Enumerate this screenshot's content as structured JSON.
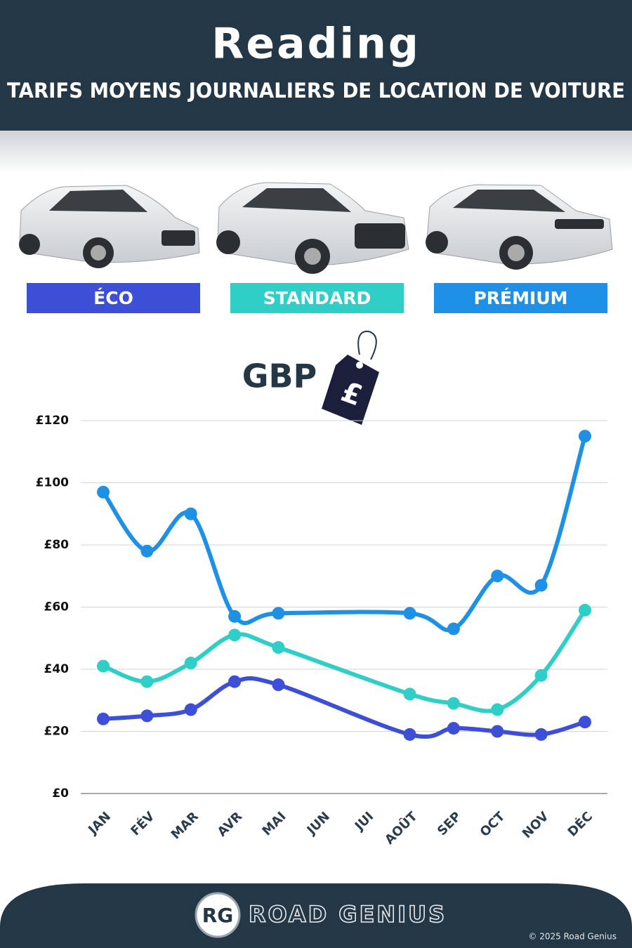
{
  "chart_data": {
    "type": "line",
    "title": "Reading",
    "subtitle": "TARIFS MOYENS JOURNALIERS DE LOCATION DE VOITURE",
    "currency_label": "GBP",
    "currency_symbol": "£",
    "categories": [
      "JAN",
      "FÉV",
      "MAR",
      "AVR",
      "MAI",
      "JUN",
      "JUI",
      "AOÛT",
      "SEP",
      "OCT",
      "NOV",
      "DÉC"
    ],
    "series": [
      {
        "name": "ÉCO",
        "color": "#3d4fd6",
        "values": [
          24,
          25,
          27,
          36,
          35,
          null,
          null,
          19,
          21,
          20,
          19,
          23
        ]
      },
      {
        "name": "STANDARD",
        "color": "#2fcfc7",
        "values": [
          41,
          36,
          42,
          51,
          47,
          null,
          null,
          32,
          29,
          27,
          38,
          59
        ]
      },
      {
        "name": "PRÉMIUM",
        "color": "#1e90e6",
        "values": [
          97,
          78,
          90,
          57,
          58,
          null,
          null,
          58,
          53,
          70,
          67,
          115
        ]
      }
    ],
    "connect_nulls": true,
    "smooth": true,
    "ylim": [
      0,
      120
    ],
    "yticks": [
      {
        "value": 0,
        "label": "£0"
      },
      {
        "value": 20,
        "label": "£20"
      },
      {
        "value": 40,
        "label": "£40"
      },
      {
        "value": 60,
        "label": "£60"
      },
      {
        "value": 80,
        "label": "£80"
      },
      {
        "value": 100,
        "label": "£100"
      },
      {
        "value": 120,
        "label": "£120"
      }
    ],
    "grid": true
  },
  "footer": {
    "logo": "RG",
    "brand": "ROAD GENIUS",
    "copyright": "© 2025 Road Genius"
  }
}
